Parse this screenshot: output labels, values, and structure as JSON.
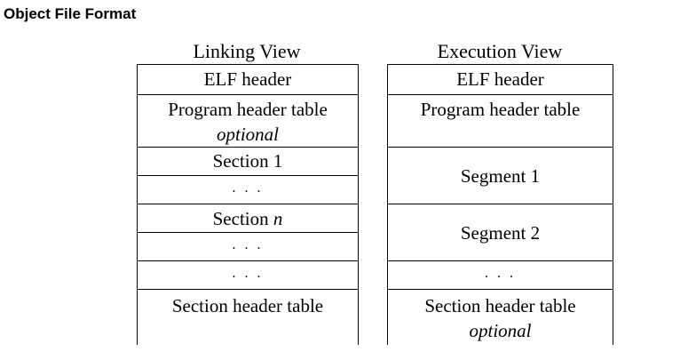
{
  "page_title": "Object File Format",
  "linking_view": {
    "title": "Linking View",
    "rows": {
      "elf_header": "ELF header",
      "program_header_table": "Program header table",
      "program_header_note": "optional",
      "section_1": "Section 1",
      "ellipsis_1": ". . .",
      "section_n_prefix": "Section ",
      "section_n_var": "n",
      "ellipsis_2": ". . .",
      "ellipsis_3": ". . .",
      "section_header_table": "Section header table"
    }
  },
  "execution_view": {
    "title": "Execution View",
    "rows": {
      "elf_header": "ELF header",
      "program_header_table": "Program header table",
      "segment_1": "Segment 1",
      "segment_2": "Segment 2",
      "ellipsis": ". . .",
      "section_header_table": "Section header table",
      "section_header_note": "optional"
    }
  }
}
